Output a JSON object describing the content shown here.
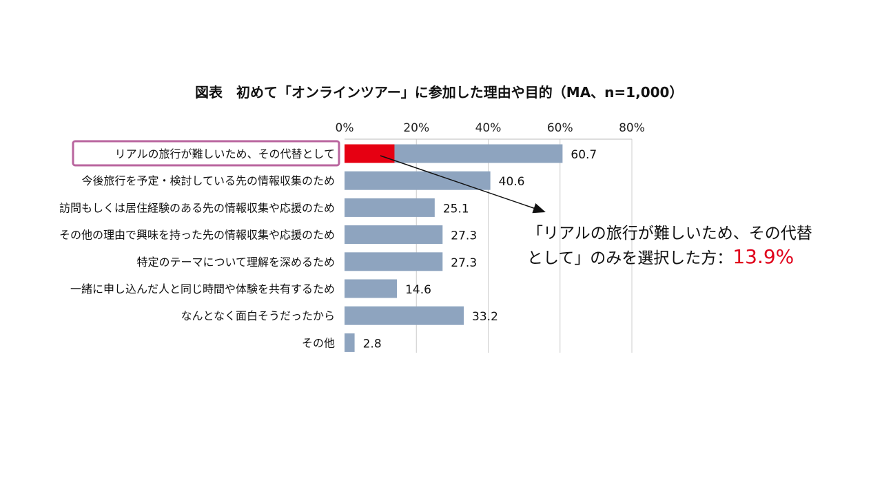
{
  "chart_data": {
    "type": "bar",
    "orientation": "horizontal",
    "title": "図表　初めて「オンラインツアー」に参加した理由や目的（MA、n=1,000）",
    "xlim": [
      0,
      80
    ],
    "x_ticks": [
      0,
      20,
      40,
      60,
      80
    ],
    "x_tick_labels": [
      "0%",
      "20%",
      "40%",
      "60%",
      "80%"
    ],
    "x_axis_position": "top",
    "grid": true,
    "categories": [
      "リアルの旅行が難しいため、その代替として",
      "今後旅行を予定・検討している先の情報収集のため",
      "訪問もしくは居住経験のある先の情報収集や応援のため",
      "その他の理由で興味を持った先の情報収集や応援のため",
      "特定のテーマについて理解を深めるため",
      "一緒に申し込んだ人と同じ時間や体験を共有するため",
      "なんとなく面白そうだったから",
      "その他"
    ],
    "values": [
      60.7,
      40.6,
      25.1,
      27.3,
      27.3,
      14.6,
      33.2,
      2.8
    ],
    "value_labels": [
      "60.7",
      "40.6",
      "25.1",
      "27.3",
      "27.3",
      "14.6",
      "33.2",
      "2.8"
    ],
    "highlight": {
      "category_index": 0,
      "value": 13.9,
      "color": "#e60012"
    },
    "bar_color": "#8ea4bf",
    "highlight_box_color": "#b9649e",
    "annotation": {
      "line1": "「リアルの旅行が難しいため、その代替",
      "line2": "として」のみを選択した方：",
      "value": "13.9%"
    }
  }
}
